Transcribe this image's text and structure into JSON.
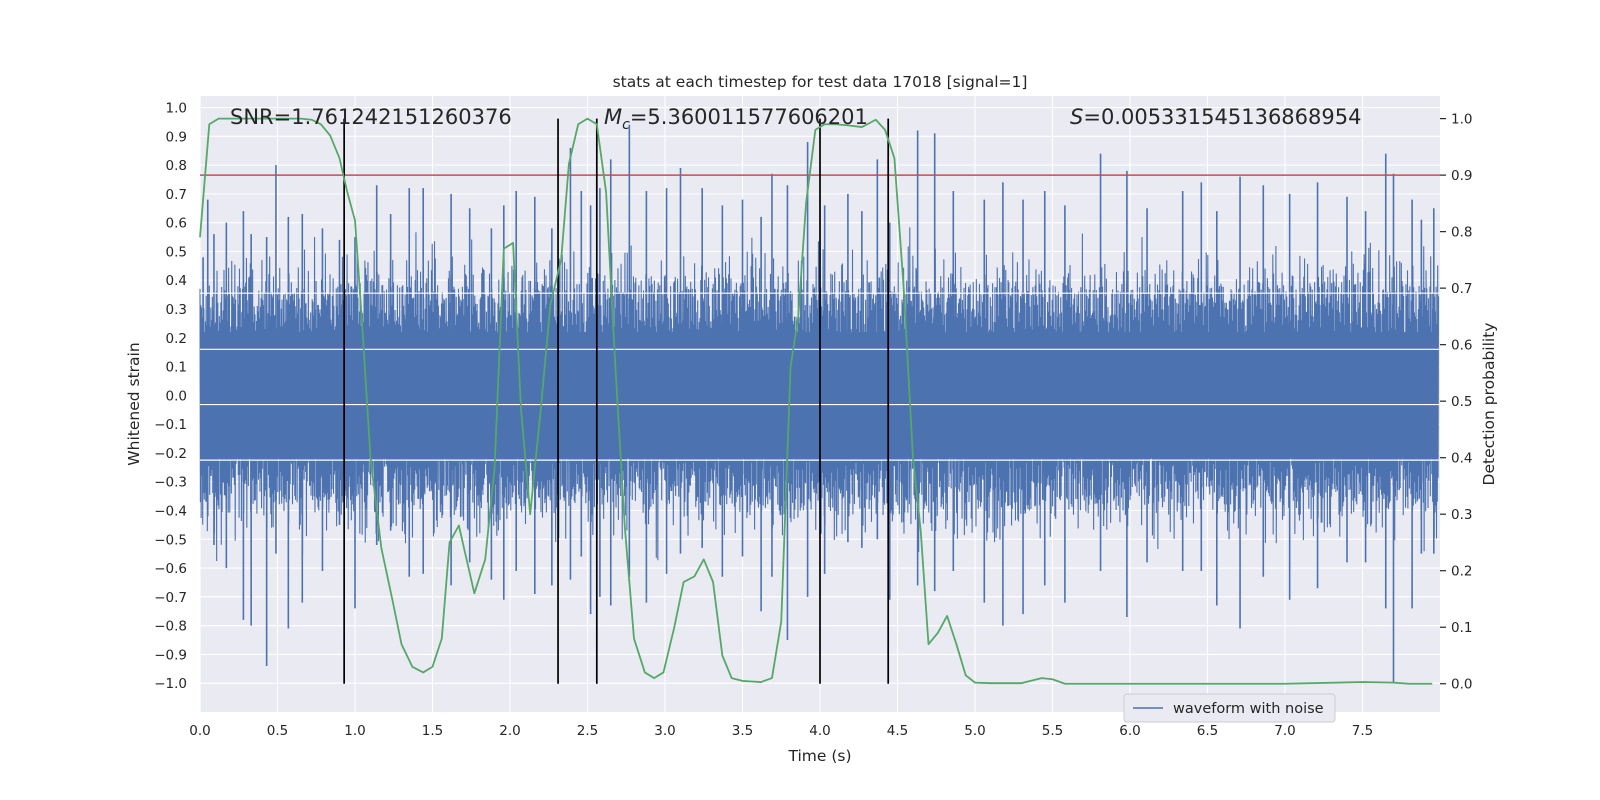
{
  "chart_data": {
    "type": "line",
    "title": "stats at each timestep for test data 17018 [signal=1]",
    "xlabel": "Time (s)",
    "ylabel": "Whitened strain",
    "y2label": "Detection probability",
    "xlim": [
      0.0,
      8.0
    ],
    "ylim": [
      -1.1,
      1.04
    ],
    "y2lim": [
      -0.05,
      1.04
    ],
    "xticks": [
      "0.0",
      "0.5",
      "1.0",
      "1.5",
      "2.0",
      "2.5",
      "3.0",
      "3.5",
      "4.0",
      "4.5",
      "5.0",
      "5.5",
      "6.0",
      "6.5",
      "7.0",
      "7.5"
    ],
    "xtick_values": [
      0.0,
      0.5,
      1.0,
      1.5,
      2.0,
      2.5,
      3.0,
      3.5,
      4.0,
      4.5,
      5.0,
      5.5,
      6.0,
      6.5,
      7.0,
      7.5
    ],
    "yticks": [
      "1.0",
      "0.9",
      "0.8",
      "0.7",
      "0.6",
      "0.5",
      "0.4",
      "0.3",
      "0.2",
      "0.1",
      "0.0",
      "−0.1",
      "−0.2",
      "−0.3",
      "−0.4",
      "−0.5",
      "−0.6",
      "−0.7",
      "−0.8",
      "−0.9",
      "−1.0"
    ],
    "ytick_values": [
      1.0,
      0.9,
      0.8,
      0.7,
      0.6,
      0.5,
      0.4,
      0.3,
      0.2,
      0.1,
      0.0,
      -0.1,
      -0.2,
      -0.3,
      -0.4,
      -0.5,
      -0.6,
      -0.7,
      -0.8,
      -0.9,
      -1.0
    ],
    "y2ticks": [
      "1.0",
      "0.9",
      "0.8",
      "0.7",
      "0.6",
      "0.5",
      "0.4",
      "0.3",
      "0.2",
      "0.1",
      "0.0"
    ],
    "y2tick_values": [
      1.0,
      0.9,
      0.8,
      0.7,
      0.6,
      0.5,
      0.4,
      0.3,
      0.2,
      0.1,
      0.0
    ],
    "annotations": {
      "snr": "SNR=1.761242151260376",
      "mc_symbol": "M",
      "mc_sub": "c",
      "mc_value": "=5.360011577606201",
      "s_symbol": "S",
      "s_value": "=0.005331545136868954"
    },
    "threshold": {
      "value": 0.9,
      "axis": "y2",
      "color": "#c44e52"
    },
    "boundaries_s": [
      0.93,
      2.31,
      2.56,
      4.0,
      4.44
    ],
    "waveform": {
      "name": "waveform with noise",
      "color": "#4c72b0",
      "t_end": 7.99,
      "peaks": [
        [
          0.02,
          0.48,
          -0.34
        ],
        [
          0.05,
          0.68,
          -0.42
        ],
        [
          0.09,
          0.56,
          -0.52
        ],
        [
          0.17,
          0.6,
          -0.6
        ],
        [
          0.28,
          0.64,
          -0.78
        ],
        [
          0.33,
          0.56,
          -0.8
        ],
        [
          0.43,
          0.55,
          -0.94
        ],
        [
          0.49,
          0.8,
          -0.55
        ],
        [
          0.57,
          0.62,
          -0.81
        ],
        [
          0.66,
          0.63,
          -0.72
        ],
        [
          0.79,
          0.58,
          -0.61
        ],
        [
          0.9,
          0.54,
          -0.45
        ],
        [
          1.0,
          0.55,
          -0.74
        ],
        [
          1.14,
          0.73,
          -0.52
        ],
        [
          1.23,
          0.63,
          -0.47
        ],
        [
          1.35,
          0.72,
          -0.63
        ],
        [
          1.44,
          0.72,
          -0.62
        ],
        [
          1.62,
          0.7,
          -0.66
        ],
        [
          1.74,
          0.65,
          -0.58
        ],
        [
          1.88,
          0.58,
          -0.64
        ],
        [
          1.96,
          0.66,
          -0.71
        ],
        [
          2.04,
          0.71,
          -0.61
        ],
        [
          2.16,
          0.69,
          -0.69
        ],
        [
          2.27,
          0.58,
          -0.66
        ],
        [
          2.39,
          0.86,
          -0.64
        ],
        [
          2.46,
          0.71,
          -0.56
        ],
        [
          2.52,
          0.66,
          -0.76
        ],
        [
          2.58,
          0.72,
          -0.7
        ],
        [
          2.65,
          0.82,
          -0.73
        ],
        [
          2.77,
          0.94,
          -0.63
        ],
        [
          2.88,
          0.71,
          -0.72
        ],
        [
          3.01,
          0.72,
          -0.62
        ],
        [
          3.1,
          0.79,
          -0.55
        ],
        [
          3.24,
          0.72,
          -0.53
        ],
        [
          3.37,
          0.66,
          -0.63
        ],
        [
          3.5,
          0.68,
          -0.56
        ],
        [
          3.62,
          0.62,
          -0.75
        ],
        [
          3.69,
          0.77,
          -0.63
        ],
        [
          3.79,
          0.73,
          -0.85
        ],
        [
          3.92,
          0.88,
          -0.7
        ],
        [
          4.03,
          0.66,
          -0.62
        ],
        [
          4.18,
          0.7,
          -0.51
        ],
        [
          4.27,
          0.64,
          -0.53
        ],
        [
          4.37,
          0.82,
          -0.5
        ],
        [
          4.45,
          0.6,
          -0.71
        ],
        [
          4.63,
          0.92,
          -0.66
        ],
        [
          4.74,
          0.91,
          -0.68
        ],
        [
          4.86,
          0.71,
          -0.61
        ],
        [
          5.06,
          0.68,
          -0.72
        ],
        [
          5.18,
          0.74,
          -0.8
        ],
        [
          5.31,
          0.68,
          -0.76
        ],
        [
          5.45,
          0.71,
          -0.66
        ],
        [
          5.58,
          0.66,
          -0.72
        ],
        [
          5.81,
          0.84,
          -0.61
        ],
        [
          5.98,
          0.78,
          -0.77
        ],
        [
          6.11,
          0.65,
          -0.58
        ],
        [
          6.34,
          0.71,
          -0.61
        ],
        [
          6.46,
          0.74,
          -0.61
        ],
        [
          6.56,
          0.64,
          -0.73
        ],
        [
          6.71,
          0.76,
          -0.81
        ],
        [
          6.86,
          0.73,
          -0.63
        ],
        [
          7.03,
          0.7,
          -0.71
        ],
        [
          7.21,
          0.74,
          -0.67
        ],
        [
          7.4,
          0.69,
          -0.58
        ],
        [
          7.52,
          0.64,
          -0.58
        ],
        [
          7.65,
          0.84,
          -0.74
        ],
        [
          7.7,
          0.77,
          -1.0
        ],
        [
          7.82,
          0.68,
          -0.74
        ],
        [
          7.88,
          0.61,
          -0.55
        ],
        [
          7.96,
          0.65,
          -0.55
        ]
      ]
    },
    "probability": {
      "name": "detection probability",
      "color": "#55a868",
      "points": [
        [
          0.0,
          0.79
        ],
        [
          0.03,
          0.89
        ],
        [
          0.06,
          0.99
        ],
        [
          0.12,
          1.0
        ],
        [
          0.2,
          1.0
        ],
        [
          0.4,
          1.0
        ],
        [
          0.55,
          1.0
        ],
        [
          0.65,
          1.0
        ],
        [
          0.72,
          0.998
        ],
        [
          0.78,
          0.99
        ],
        [
          0.84,
          0.97
        ],
        [
          0.9,
          0.93
        ],
        [
          0.95,
          0.87
        ],
        [
          1.0,
          0.82
        ],
        [
          1.05,
          0.62
        ],
        [
          1.1,
          0.4
        ],
        [
          1.17,
          0.24
        ],
        [
          1.24,
          0.15
        ],
        [
          1.3,
          0.07
        ],
        [
          1.37,
          0.03
        ],
        [
          1.44,
          0.02
        ],
        [
          1.5,
          0.03
        ],
        [
          1.56,
          0.08
        ],
        [
          1.61,
          0.25
        ],
        [
          1.67,
          0.28
        ],
        [
          1.72,
          0.22
        ],
        [
          1.77,
          0.16
        ],
        [
          1.84,
          0.22
        ],
        [
          1.9,
          0.38
        ],
        [
          1.96,
          0.77
        ],
        [
          2.02,
          0.78
        ],
        [
          2.07,
          0.49
        ],
        [
          2.13,
          0.3
        ],
        [
          2.2,
          0.49
        ],
        [
          2.26,
          0.67
        ],
        [
          2.33,
          0.75
        ],
        [
          2.38,
          0.92
        ],
        [
          2.44,
          0.99
        ],
        [
          2.5,
          1.0
        ],
        [
          2.56,
          0.99
        ],
        [
          2.62,
          0.87
        ],
        [
          2.68,
          0.56
        ],
        [
          2.74,
          0.28
        ],
        [
          2.8,
          0.08
        ],
        [
          2.87,
          0.02
        ],
        [
          2.93,
          0.01
        ],
        [
          2.99,
          0.02
        ],
        [
          3.06,
          0.1
        ],
        [
          3.12,
          0.18
        ],
        [
          3.19,
          0.19
        ],
        [
          3.25,
          0.22
        ],
        [
          3.31,
          0.18
        ],
        [
          3.37,
          0.05
        ],
        [
          3.43,
          0.01
        ],
        [
          3.5,
          0.005
        ],
        [
          3.56,
          0.004
        ],
        [
          3.62,
          0.003
        ],
        [
          3.69,
          0.01
        ],
        [
          3.75,
          0.11
        ],
        [
          3.81,
          0.56
        ],
        [
          3.86,
          0.65
        ],
        [
          3.91,
          0.85
        ],
        [
          3.97,
          0.98
        ],
        [
          4.03,
          0.99
        ],
        [
          4.1,
          0.99
        ],
        [
          4.18,
          0.988
        ],
        [
          4.27,
          0.985
        ],
        [
          4.36,
          0.998
        ],
        [
          4.42,
          0.98
        ],
        [
          4.48,
          0.93
        ],
        [
          4.54,
          0.7
        ],
        [
          4.6,
          0.4
        ],
        [
          4.65,
          0.27
        ],
        [
          4.7,
          0.07
        ],
        [
          4.76,
          0.09
        ],
        [
          4.82,
          0.12
        ],
        [
          4.88,
          0.07
        ],
        [
          4.94,
          0.015
        ],
        [
          5.0,
          0.002
        ],
        [
          5.1,
          0.001
        ],
        [
          5.3,
          0.001
        ],
        [
          5.43,
          0.01
        ],
        [
          5.5,
          0.008
        ],
        [
          5.58,
          0.0
        ],
        [
          6.0,
          0.0
        ],
        [
          6.5,
          0.0
        ],
        [
          7.0,
          0.0
        ],
        [
          7.5,
          0.003
        ],
        [
          7.7,
          0.002
        ],
        [
          7.8,
          0.0
        ],
        [
          7.95,
          0.0
        ]
      ]
    },
    "legend": {
      "label": "waveform with noise",
      "placement": "lower-right"
    },
    "colors": {
      "axes_bg": "#eaeaf2",
      "grid": "#ffffff",
      "text": "#262626",
      "vline": "#000000",
      "legend_bg": "#eaeaf2",
      "legend_border": "#cccccc"
    }
  }
}
